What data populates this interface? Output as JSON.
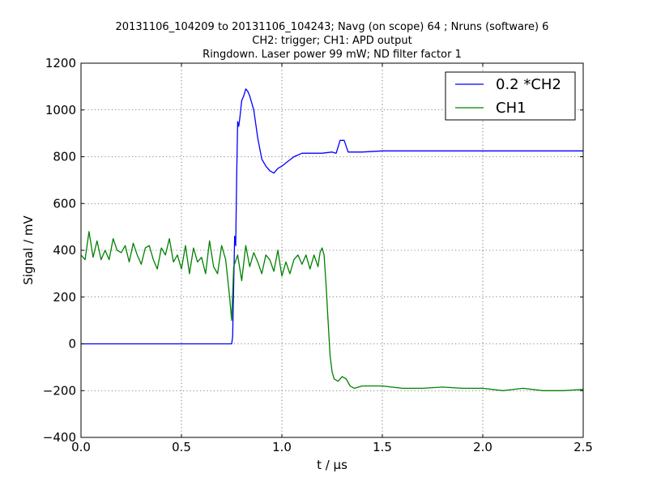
{
  "title": {
    "line1": "20131106_104209 to 20131106_104243; Navg (on scope) 64 ; Nruns (software) 6",
    "line2": "CH2: trigger; CH1: APD output",
    "line3": "Ringdown. Laser power 99 mW; ND filter factor 1"
  },
  "chart_data": {
    "type": "line",
    "title": "20131106_104209 to 20131106_104243; Navg (on scope) 64 ; Nruns (software) 6 / CH2: trigger; CH1: APD output / Ringdown. Laser power 99 mW; ND filter factor 1",
    "xlabel": "t / μs",
    "ylabel": "Signal / mV",
    "xlim": [
      0.0,
      2.5
    ],
    "ylim": [
      -400,
      1200
    ],
    "xticks": [
      0.0,
      0.5,
      1.0,
      1.5,
      2.0,
      2.5
    ],
    "xtick_labels": [
      "0.0",
      "0.5",
      "1.0",
      "1.5",
      "2.0",
      "2.5"
    ],
    "yticks": [
      -400,
      -200,
      0,
      200,
      400,
      600,
      800,
      1000,
      1200
    ],
    "ytick_labels": [
      "−400",
      "−200",
      "0",
      "200",
      "400",
      "600",
      "800",
      "1000",
      "1200"
    ],
    "grid": true,
    "legend_position": "top-right",
    "series": [
      {
        "name": "0.2 *CH2",
        "color": "#0000ff",
        "x": [
          0.0,
          0.1,
          0.2,
          0.3,
          0.4,
          0.5,
          0.6,
          0.7,
          0.74,
          0.75,
          0.755,
          0.76,
          0.765,
          0.77,
          0.775,
          0.78,
          0.785,
          0.79,
          0.8,
          0.81,
          0.82,
          0.83,
          0.84,
          0.86,
          0.88,
          0.9,
          0.92,
          0.94,
          0.96,
          0.98,
          1.0,
          1.03,
          1.06,
          1.1,
          1.15,
          1.2,
          1.25,
          1.27,
          1.29,
          1.31,
          1.33,
          1.36,
          1.4,
          1.5,
          1.6,
          1.8,
          2.0,
          2.2,
          2.4,
          2.5
        ],
        "y": [
          0,
          0,
          0,
          0,
          0,
          0,
          0,
          0,
          0,
          0,
          30,
          250,
          460,
          420,
          720,
          950,
          930,
          960,
          1040,
          1060,
          1090,
          1080,
          1060,
          1000,
          880,
          790,
          760,
          740,
          730,
          750,
          760,
          780,
          800,
          815,
          815,
          815,
          820,
          815,
          870,
          870,
          820,
          820,
          820,
          825,
          825,
          825,
          825,
          825,
          825,
          825
        ]
      },
      {
        "name": "CH1",
        "color": "#008000",
        "x": [
          0.0,
          0.02,
          0.04,
          0.06,
          0.08,
          0.1,
          0.12,
          0.14,
          0.16,
          0.18,
          0.2,
          0.22,
          0.24,
          0.26,
          0.28,
          0.3,
          0.32,
          0.34,
          0.36,
          0.38,
          0.4,
          0.42,
          0.44,
          0.46,
          0.48,
          0.5,
          0.52,
          0.54,
          0.56,
          0.58,
          0.6,
          0.62,
          0.64,
          0.66,
          0.68,
          0.7,
          0.72,
          0.74,
          0.75,
          0.76,
          0.78,
          0.8,
          0.82,
          0.84,
          0.86,
          0.88,
          0.9,
          0.92,
          0.94,
          0.96,
          0.98,
          1.0,
          1.02,
          1.04,
          1.06,
          1.08,
          1.1,
          1.12,
          1.14,
          1.16,
          1.18,
          1.19,
          1.2,
          1.21,
          1.22,
          1.23,
          1.24,
          1.25,
          1.26,
          1.28,
          1.3,
          1.32,
          1.34,
          1.36,
          1.4,
          1.5,
          1.6,
          1.7,
          1.8,
          1.9,
          2.0,
          2.1,
          2.2,
          2.3,
          2.4,
          2.5
        ],
        "y": [
          380,
          360,
          480,
          370,
          440,
          360,
          400,
          360,
          450,
          400,
          390,
          420,
          350,
          430,
          380,
          340,
          410,
          420,
          360,
          320,
          410,
          380,
          450,
          350,
          380,
          320,
          420,
          300,
          410,
          350,
          370,
          300,
          440,
          330,
          300,
          420,
          360,
          200,
          100,
          330,
          380,
          270,
          420,
          330,
          390,
          350,
          300,
          380,
          360,
          310,
          400,
          290,
          350,
          300,
          360,
          380,
          340,
          380,
          320,
          380,
          330,
          390,
          410,
          380,
          250,
          100,
          -50,
          -120,
          -150,
          -160,
          -140,
          -150,
          -180,
          -190,
          -180,
          -180,
          -190,
          -190,
          -185,
          -190,
          -190,
          -200,
          -190,
          -200,
          -200,
          -195
        ]
      }
    ]
  }
}
